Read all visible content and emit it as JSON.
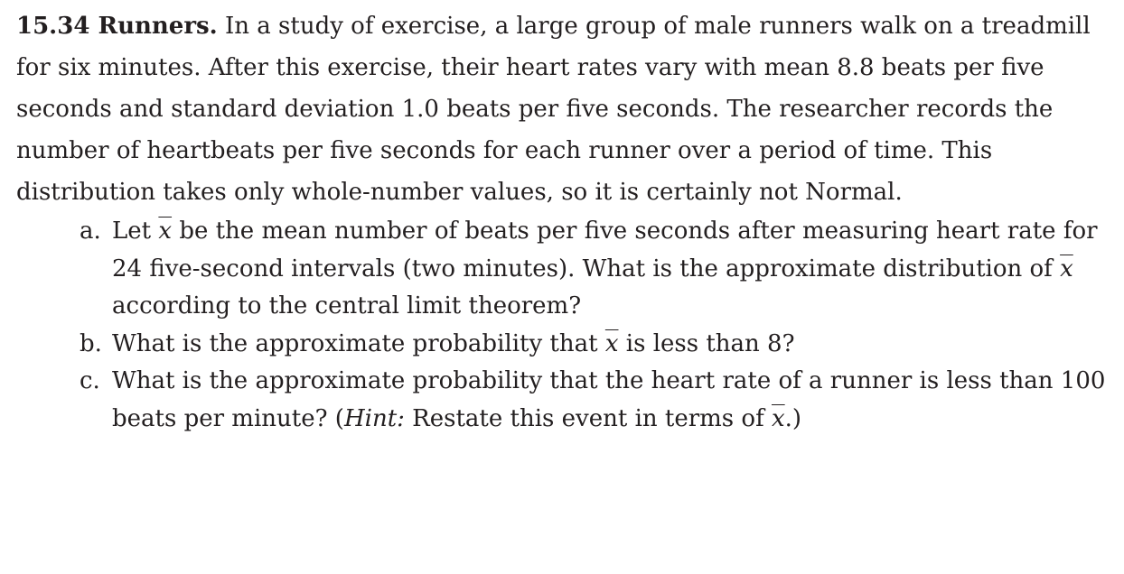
{
  "exercise": {
    "number": "15.34",
    "title": "Runners.",
    "intro": "In a study of exercise, a large group of male runners walk on a treadmill for six minutes. After this exercise, their heart rates vary with mean 8.8 beats per five seconds and standard deviation 1.0 beats per five seconds. The researcher records the number of heartbeats per five seconds for each runner over a period of time. This distribution takes only whole-number values, so it is certainly not Normal.",
    "symbol_xbar": "x",
    "parts": [
      {
        "letter": "a.",
        "text_1": "Let",
        "text_2": "be the mean number of beats per five seconds after measuring heart rate for 24 five-second intervals (two minutes). What is the approximate distribution of",
        "text_3": "according to the central limit theorem?"
      },
      {
        "letter": "b.",
        "text_1": "What is the approximate probability that",
        "text_2": "is less than 8?"
      },
      {
        "letter": "c.",
        "text_1": "What is the approximate probability that the heart rate of a runner is less than 100 beats per minute? (",
        "hint_label": "Hint:",
        "text_2": "Restate this event in terms of",
        "text_3": ".)"
      }
    ]
  }
}
